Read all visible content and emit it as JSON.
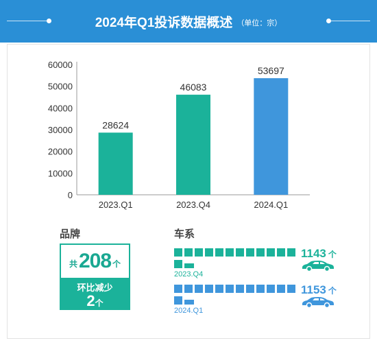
{
  "header": {
    "title": "2024年Q1投诉数据概述",
    "unit": "（单位：宗）"
  },
  "colors": {
    "header_bg": "#2a8fd6",
    "teal": "#1bb29a",
    "blue": "#3f96dc",
    "text": "#333333"
  },
  "chart_data": {
    "type": "bar",
    "categories": [
      "2023.Q1",
      "2023.Q4",
      "2024.Q1"
    ],
    "values": [
      28624,
      46083,
      53697
    ],
    "bar_colors": [
      "#1bb29a",
      "#1bb29a",
      "#3f96dc"
    ],
    "ylim": [
      0,
      60000
    ],
    "yticks": [
      "0",
      "10000",
      "20000",
      "30000",
      "40000",
      "50000",
      "60000"
    ],
    "ytick_values": [
      0,
      10000,
      20000,
      30000,
      40000,
      50000,
      60000
    ],
    "grid": false,
    "legend": "none"
  },
  "brand": {
    "title": "品牌",
    "prefix": "共",
    "total": "208",
    "unit": "个",
    "change_label": "环比减少",
    "change_value": "2",
    "change_unit": "个"
  },
  "series": {
    "title": "车系",
    "rows": [
      {
        "period": "2023.Q4",
        "value": "1143",
        "unit": "个",
        "color": "#1bb29a",
        "icon": "car-icon"
      },
      {
        "period": "2024.Q1",
        "value": "1153",
        "unit": "个",
        "color": "#3f96dc",
        "icon": "car-icon"
      }
    ]
  }
}
